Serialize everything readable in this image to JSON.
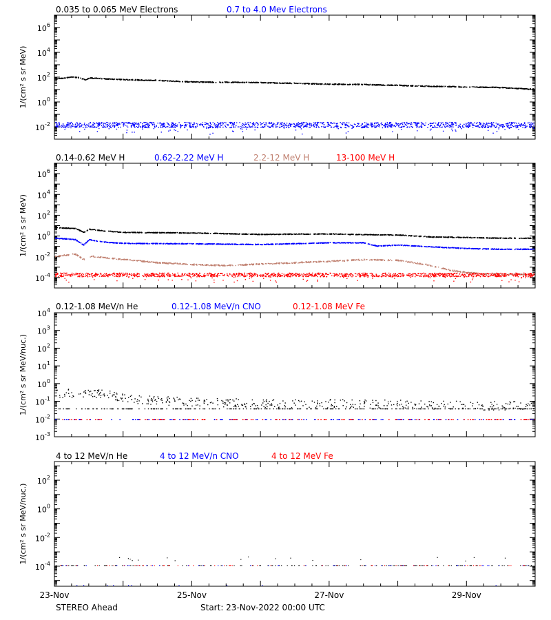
{
  "footer": {
    "spacecraft": "STEREO Ahead",
    "start": "Start: 23-Nov-2022 00:00 UTC"
  },
  "colors": {
    "black": "#000000",
    "blue": "#0000ff",
    "tan": "#c08070",
    "red": "#ff0000"
  },
  "chart_data": [
    {
      "type": "scatter",
      "panel": "electrons",
      "ylabel": "1/(cm² s sr MeV)",
      "yscale": "log",
      "ylim": [
        0.001,
        10000000
      ],
      "major_ticks": [
        "10^-2",
        "10^0",
        "10^2",
        "10^4",
        "10^6"
      ],
      "legend": [
        {
          "name": "0.035 to 0.065 MeV Electrons",
          "color": "#000000"
        },
        {
          "name": "0.7 to 4.0 Mev Electrons",
          "color": "#0000ff"
        }
      ],
      "series": [
        {
          "name": "0.035 to 0.065 MeV Electrons",
          "color": "#000000",
          "x": [
            0,
            0.25,
            0.35,
            0.45,
            0.5,
            0.6,
            0.75,
            1.0,
            1.5,
            2.0,
            2.5,
            3.0,
            3.5,
            4.0,
            4.5,
            5.0,
            5.5,
            6.0,
            6.5,
            6.9
          ],
          "y": [
            80,
            110,
            100,
            65,
            95,
            90,
            80,
            70,
            60,
            45,
            43,
            40,
            35,
            30,
            28,
            24,
            20,
            18,
            16,
            12
          ]
        },
        {
          "name": "0.7 to 4.0 Mev Electrons",
          "color": "#0000ff",
          "x": [
            0,
            7
          ],
          "y": [
            0.015,
            0.015
          ]
        }
      ]
    },
    {
      "type": "scatter",
      "panel": "protons",
      "ylabel": "1/(cm² s sr MeV)",
      "yscale": "log",
      "ylim": [
        1e-05,
        10000000
      ],
      "major_ticks": [
        "10^-4",
        "10^-2",
        "10^0",
        "10^2",
        "10^4",
        "10^6"
      ],
      "legend": [
        {
          "name": "0.14-0.62 MeV H",
          "color": "#000000"
        },
        {
          "name": "0.62-2.22 MeV H",
          "color": "#0000ff"
        },
        {
          "name": "2.2-12 MeV H",
          "color": "#c08070"
        },
        {
          "name": "13-100 MeV H",
          "color": "#ff0000"
        }
      ],
      "series": [
        {
          "name": "0.14-0.62 MeV H",
          "color": "#000000",
          "x": [
            0,
            0.3,
            0.42,
            0.5,
            0.7,
            1.0,
            2.0,
            3.0,
            4.0,
            4.5,
            5.0,
            5.5,
            6.0,
            6.5,
            6.9
          ],
          "y": [
            7,
            6,
            2.5,
            5,
            3.5,
            2.5,
            2.2,
            1.6,
            1.8,
            1.5,
            1.4,
            0.9,
            0.8,
            0.7,
            0.7
          ]
        },
        {
          "name": "0.62-2.22 MeV H",
          "color": "#0000ff",
          "x": [
            0,
            0.3,
            0.42,
            0.5,
            0.7,
            1.0,
            2.0,
            3.0,
            4.0,
            4.5,
            4.7,
            5.0,
            5.5,
            6.0,
            6.5,
            6.9
          ],
          "y": [
            0.7,
            0.5,
            0.15,
            0.5,
            0.3,
            0.22,
            0.2,
            0.17,
            0.25,
            0.25,
            0.12,
            0.15,
            0.1,
            0.07,
            0.06,
            0.06
          ]
        },
        {
          "name": "2.2-12 MeV H",
          "color": "#c08070",
          "x": [
            0,
            0.3,
            0.42,
            0.55,
            1.0,
            1.5,
            2.0,
            2.5,
            3.0,
            3.5,
            4.0,
            4.5,
            5.0,
            5.4,
            5.8,
            6.2,
            6.9
          ],
          "y": [
            0.012,
            0.02,
            0.006,
            0.012,
            0.006,
            0.003,
            0.002,
            0.0016,
            0.0022,
            0.003,
            0.004,
            0.006,
            0.005,
            0.002,
            0.0005,
            0.00025,
            0.00022
          ]
        },
        {
          "name": "13-100 MeV H",
          "color": "#ff0000",
          "x": [
            0,
            7
          ],
          "y": [
            0.0002,
            0.0002
          ]
        }
      ]
    },
    {
      "type": "scatter",
      "panel": "low-energy-ions",
      "ylabel": "1/(cm² s sr MeV/nuc.)",
      "yscale": "log",
      "ylim": [
        0.001,
        10000
      ],
      "major_ticks": [
        "10^-3",
        "10^-2",
        "10^-1",
        "10^0",
        "10^1",
        "10^2",
        "10^3",
        "10^4"
      ],
      "legend": [
        {
          "name": "0.12-1.08 MeV/n He",
          "color": "#000000"
        },
        {
          "name": "0.12-1.08 MeV/n CNO",
          "color": "#0000ff"
        },
        {
          "name": "0.12-1.08 MeV Fe",
          "color": "#ff0000"
        }
      ],
      "series": [
        {
          "name": "0.12-1.08 MeV/n He",
          "color": "#000000",
          "x": [
            0,
            0.7,
            1.0,
            1.5,
            2.0,
            3.0,
            4.0,
            5.0,
            6.0,
            7.0
          ],
          "y": [
            0.3,
            0.3,
            0.15,
            0.12,
            0.1,
            0.08,
            0.08,
            0.07,
            0.06,
            0.06
          ]
        },
        {
          "name": "0.12-1.08 MeV/n CNO",
          "color": "#0000ff",
          "x": [
            0,
            7
          ],
          "y": [
            0.01,
            0.01
          ]
        },
        {
          "name": "0.12-1.08 MeV Fe",
          "color": "#ff0000",
          "x": [
            0,
            7
          ],
          "y": [
            0.01,
            0.01
          ]
        }
      ]
    },
    {
      "type": "scatter",
      "panel": "high-energy-ions",
      "ylabel": "1/(cm² s sr MeV/nuc.)",
      "yscale": "log",
      "ylim": [
        4e-06,
        2000
      ],
      "major_ticks": [
        "10^-4",
        "10^-2",
        "10^0",
        "10^2"
      ],
      "legend": [
        {
          "name": "4 to 12 MeV/n He",
          "color": "#000000"
        },
        {
          "name": "4 to 12 MeV/n CNO",
          "color": "#0000ff"
        },
        {
          "name": "4 to 12 MeV Fe",
          "color": "#ff0000"
        }
      ],
      "series": [
        {
          "name": "4 to 12 MeV/n He",
          "color": "#000000",
          "x": [
            0,
            7
          ],
          "y": [
            0.00012,
            0.00012
          ]
        },
        {
          "name": "4 to 12 MeV/n CNO",
          "color": "#0000ff",
          "x": [
            0,
            7
          ],
          "y": [
            0.00012,
            0.00012
          ]
        },
        {
          "name": "4 to 12 MeV Fe",
          "color": "#ff0000",
          "x": [
            0,
            7
          ],
          "y": [
            0.00012,
            0.00012
          ]
        }
      ]
    }
  ],
  "x_axis": {
    "range_days": [
      0,
      7
    ],
    "labels": [
      {
        "day": 0,
        "text": "23-Nov"
      },
      {
        "day": 2,
        "text": "25-Nov"
      },
      {
        "day": 4,
        "text": "27-Nov"
      },
      {
        "day": 6,
        "text": "29-Nov"
      }
    ]
  }
}
